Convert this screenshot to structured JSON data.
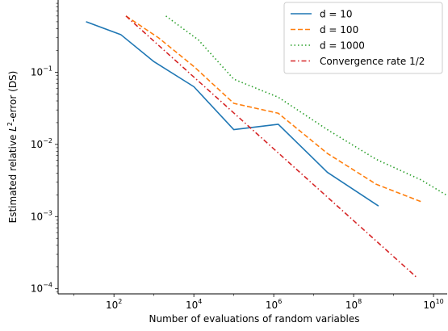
{
  "chart_data": {
    "type": "line",
    "xlabel": "Number of evaluations of random variables",
    "ylabel": "Estimated relative L²-error (DS)",
    "ylabel_parts": {
      "prefix": "Estimated relative ",
      "italic": "L",
      "sup": "2",
      "suffix": "-error (DS)"
    },
    "x_scale": "log",
    "y_scale": "log",
    "xlim": [
      4.0,
      22000000000.0
    ],
    "ylim": [
      8.5e-05,
      1.0
    ],
    "x_ticks": [
      100,
      10000,
      1000000,
      100000000,
      10000000000
    ],
    "x_tick_labels": [
      {
        "base": "10",
        "exp": "2"
      },
      {
        "base": "10",
        "exp": "4"
      },
      {
        "base": "10",
        "exp": "6"
      },
      {
        "base": "10",
        "exp": "8"
      },
      {
        "base": "10",
        "exp": "10"
      }
    ],
    "y_ticks": [
      0.0001,
      0.001,
      0.01,
      0.1
    ],
    "y_tick_labels": [
      {
        "base": "10",
        "exp": "−4"
      },
      {
        "base": "10",
        "exp": "−3"
      },
      {
        "base": "10",
        "exp": "−2"
      },
      {
        "base": "10",
        "exp": "−1"
      }
    ],
    "grid": false,
    "legend_position": "top-right",
    "series": [
      {
        "name": "d = 10",
        "color": "#1f77b4",
        "dash": "solid",
        "x": [
          20,
          150,
          1000,
          10000,
          100000,
          1300000,
          22000000,
          420000000
        ],
        "y": [
          0.5,
          0.33,
          0.14,
          0.063,
          0.016,
          0.019,
          0.0041,
          0.0014
        ]
      },
      {
        "name": "d = 100",
        "color": "#ff7f0e",
        "dash": "dashed",
        "x": [
          200,
          1300,
          10000,
          100000,
          1300000,
          22000000,
          370000000,
          5000000000
        ],
        "y": [
          0.6,
          0.3,
          0.12,
          0.037,
          0.027,
          0.0075,
          0.0028,
          0.0016
        ]
      },
      {
        "name": "d = 1000",
        "color": "#2ca02c",
        "dash": "dotted",
        "x": [
          2000,
          13000,
          100000,
          1300000,
          22000000,
          370000000,
          5000000000,
          60000000000
        ],
        "y": [
          0.6,
          0.28,
          0.08,
          0.045,
          0.016,
          0.0062,
          0.0032,
          0.0014
        ]
      },
      {
        "name": "Convergence rate 1/2",
        "color": "#d62728",
        "dash": "dashdot",
        "x": [
          200,
          4000000000
        ],
        "y": [
          0.6,
          0.00014
        ]
      }
    ]
  }
}
